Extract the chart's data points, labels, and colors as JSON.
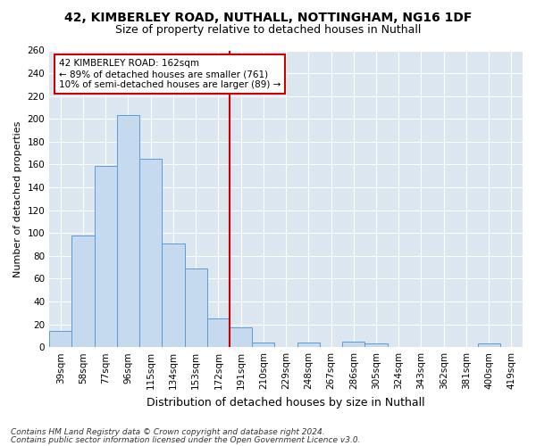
{
  "title1": "42, KIMBERLEY ROAD, NUTHALL, NOTTINGHAM, NG16 1DF",
  "title2": "Size of property relative to detached houses in Nuthall",
  "xlabel": "Distribution of detached houses by size in Nuthall",
  "ylabel": "Number of detached properties",
  "categories": [
    "39sqm",
    "58sqm",
    "77sqm",
    "96sqm",
    "115sqm",
    "134sqm",
    "153sqm",
    "172sqm",
    "191sqm",
    "210sqm",
    "229sqm",
    "248sqm",
    "267sqm",
    "286sqm",
    "305sqm",
    "324sqm",
    "343sqm",
    "362sqm",
    "381sqm",
    "400sqm",
    "419sqm"
  ],
  "values": [
    14,
    98,
    159,
    203,
    165,
    91,
    69,
    25,
    17,
    4,
    0,
    4,
    0,
    5,
    3,
    0,
    0,
    0,
    0,
    3,
    0
  ],
  "bar_color": "#c5d9ef",
  "bar_edge_color": "#5b9bd5",
  "vline_x": 7.5,
  "vline_color": "#cc0000",
  "annotation_text": "42 KIMBERLEY ROAD: 162sqm\n← 89% of detached houses are smaller (761)\n10% of semi-detached houses are larger (89) →",
  "annotation_box_color": "#ffffff",
  "annotation_box_edge": "#cc0000",
  "ylim": [
    0,
    260
  ],
  "yticks": [
    0,
    20,
    40,
    60,
    80,
    100,
    120,
    140,
    160,
    180,
    200,
    220,
    240,
    260
  ],
  "bg_color": "#dce6f1",
  "fig_bg_color": "#ffffff",
  "footer1": "Contains HM Land Registry data © Crown copyright and database right 2024.",
  "footer2": "Contains public sector information licensed under the Open Government Licence v3.0.",
  "title1_fontsize": 10,
  "title2_fontsize": 9,
  "xlabel_fontsize": 9,
  "ylabel_fontsize": 8,
  "tick_fontsize": 7.5,
  "annotation_fontsize": 7.5,
  "footer_fontsize": 6.5
}
